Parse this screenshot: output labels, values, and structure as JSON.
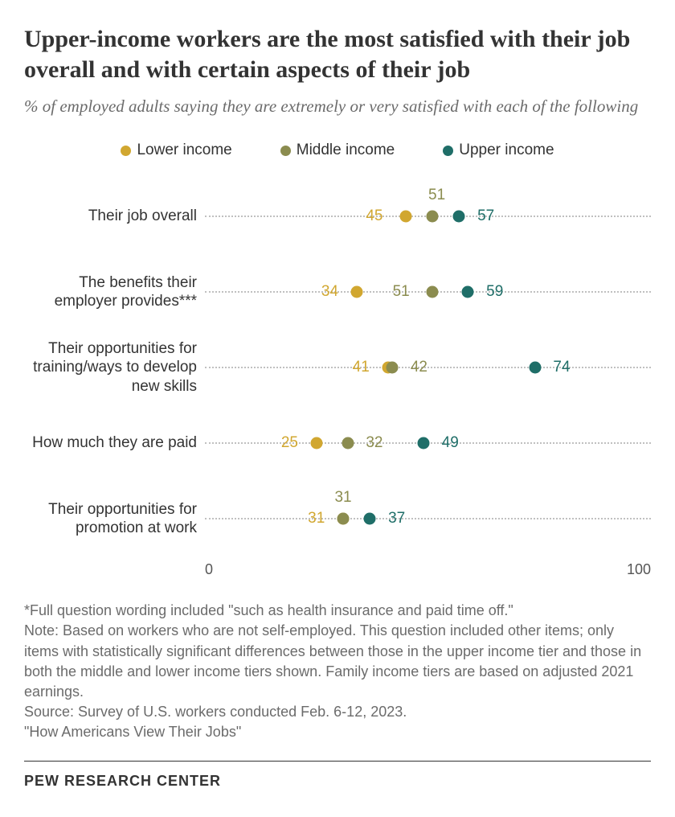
{
  "title": "Upper-income workers are the most satisfied with their job overall and with certain aspects of their job",
  "title_fontsize": 30,
  "subtitle": "% of employed adults saying they are extremely or very satisfied with each of the following",
  "subtitle_fontsize": 21,
  "legend_fontsize": 19,
  "row_label_fontsize": 19,
  "value_fontsize": 19,
  "axis_fontsize": 18,
  "notes_fontsize": 18,
  "footer_fontsize": 18,
  "xlim": [
    0,
    100
  ],
  "colors": {
    "lower": "#d1a730",
    "middle": "#8b8c4f",
    "upper": "#1f6e68",
    "grid": "#c0c0c0",
    "text": "#333333",
    "bg": "#ffffff"
  },
  "series": [
    {
      "key": "lower",
      "label": "Lower income"
    },
    {
      "key": "middle",
      "label": "Middle income"
    },
    {
      "key": "upper",
      "label": "Upper income"
    }
  ],
  "rows": [
    {
      "label": "Their job overall",
      "points": {
        "lower": {
          "v": 45,
          "lx": 38,
          "ly": 50
        },
        "middle": {
          "v": 51,
          "lx": 52,
          "ly": 22
        },
        "upper": {
          "v": 57,
          "lx": 63,
          "ly": 50
        }
      }
    },
    {
      "label": "The benefits their employer provides***",
      "points": {
        "lower": {
          "v": 34,
          "lx": 28,
          "ly": 50
        },
        "middle": {
          "v": 51,
          "lx": 44,
          "ly": 50
        },
        "upper": {
          "v": 59,
          "lx": 65,
          "ly": 50
        }
      }
    },
    {
      "label": "Their opportunities for training/ways to develop new skills",
      "points": {
        "lower": {
          "v": 41,
          "lx": 35,
          "ly": 50
        },
        "middle": {
          "v": 42,
          "lx": 48,
          "ly": 50
        },
        "upper": {
          "v": 74,
          "lx": 80,
          "ly": 50
        }
      }
    },
    {
      "label": "How much they are paid",
      "points": {
        "lower": {
          "v": 25,
          "lx": 19,
          "ly": 50
        },
        "middle": {
          "v": 32,
          "lx": 38,
          "ly": 50
        },
        "upper": {
          "v": 49,
          "lx": 55,
          "ly": 50
        }
      }
    },
    {
      "label": "Their opportunities for promotion at work",
      "points": {
        "lower": {
          "v": 31,
          "lx": 25,
          "ly": 50
        },
        "middle": {
          "v": 31,
          "lx": 31,
          "ly": 22
        },
        "upper": {
          "v": 37,
          "lx": 43,
          "ly": 50
        }
      }
    }
  ],
  "axis": {
    "min": "0",
    "max": "100"
  },
  "notes": [
    "*Full question wording included \"such as health insurance and paid time off.\"",
    "Note: Based on workers who are not self-employed. This question included other items; only items with statistically significant differences between those in the upper income tier and those in both the middle and lower income tiers shown. Family income tiers are based on adjusted 2021 earnings.",
    "Source: Survey of U.S. workers conducted Feb. 6-12, 2023.",
    "\"How Americans View Their Jobs\""
  ],
  "footer": "PEW RESEARCH CENTER"
}
